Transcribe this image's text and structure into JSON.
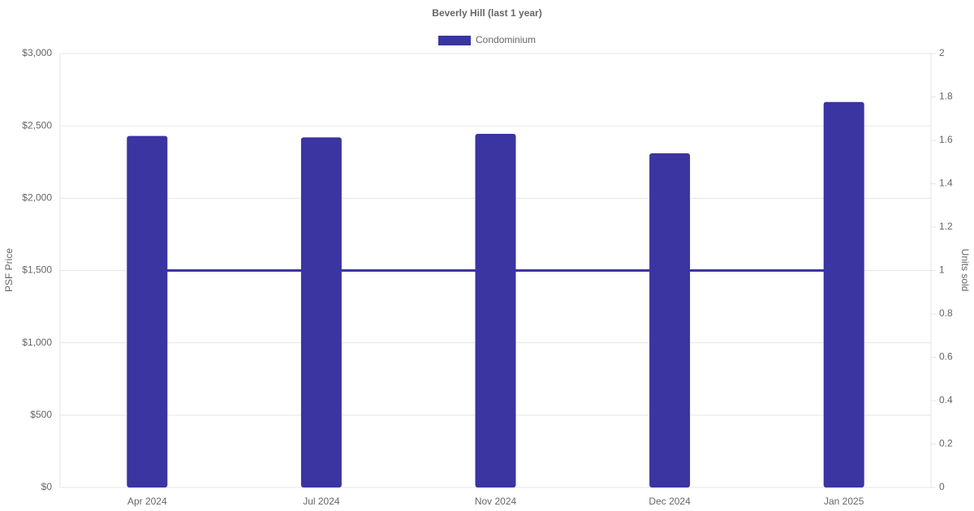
{
  "chart_data": {
    "type": "bar",
    "title": "Beverly Hill (last 1 year)",
    "categories": [
      "Apr 2024",
      "Jul 2024",
      "Nov 2024",
      "Dec 2024",
      "Jan 2025"
    ],
    "series": [
      {
        "name": "Condominium",
        "color": "#3a35a0",
        "type": "bar",
        "values": [
          2430,
          2420,
          2445,
          2310,
          2665
        ]
      },
      {
        "color": "#3a35a0",
        "type": "line",
        "axis": "y2",
        "values": [
          1,
          1,
          1,
          1,
          1
        ]
      }
    ],
    "y_label": "PSF Price",
    "y2_label": "Units sold",
    "ylim": [
      0,
      3000
    ],
    "yticks": [
      {
        "value": 0,
        "label": "$0"
      },
      {
        "value": 500,
        "label": "$500"
      },
      {
        "value": 1000,
        "label": "$1,000"
      },
      {
        "value": 1500,
        "label": "$1,500"
      },
      {
        "value": 2000,
        "label": "$2,000"
      },
      {
        "value": 2500,
        "label": "$2,500"
      },
      {
        "value": 3000,
        "label": "$3,000"
      }
    ],
    "y2lim": [
      0,
      2
    ],
    "y2ticks": [
      0,
      0.2,
      0.4,
      0.6,
      0.8,
      1,
      1.2,
      1.4,
      1.6,
      1.8,
      2
    ],
    "grid": true,
    "legend": "top"
  }
}
